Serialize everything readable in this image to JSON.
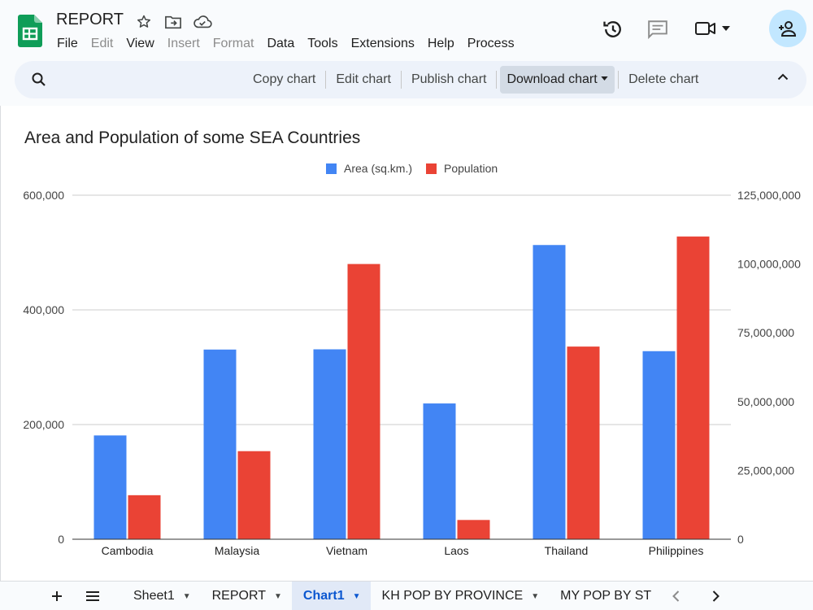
{
  "header": {
    "title": "REPORT",
    "menus": [
      {
        "label": "File",
        "disabled": false
      },
      {
        "label": "Edit",
        "disabled": true
      },
      {
        "label": "View",
        "disabled": false
      },
      {
        "label": "Insert",
        "disabled": true
      },
      {
        "label": "Format",
        "disabled": true
      },
      {
        "label": "Data",
        "disabled": false
      },
      {
        "label": "Tools",
        "disabled": false
      },
      {
        "label": "Extensions",
        "disabled": false
      },
      {
        "label": "Help",
        "disabled": false
      },
      {
        "label": "Process",
        "disabled": false
      }
    ]
  },
  "toolbar": {
    "copy": "Copy chart",
    "edit": "Edit chart",
    "publish": "Publish chart",
    "download": "Download chart",
    "delete": "Delete chart"
  },
  "chart_data": {
    "type": "bar",
    "title": "Area and Population of some SEA Countries",
    "categories": [
      "Cambodia",
      "Malaysia",
      "Vietnam",
      "Laos",
      "Thailand",
      "Philippines"
    ],
    "series": [
      {
        "name": "Area (sq.km.)",
        "axis": "left",
        "color": "#4285f4",
        "values": [
          181035,
          330803,
          331212,
          236800,
          513120,
          328000
        ]
      },
      {
        "name": "Population",
        "axis": "right",
        "color": "#ea4335",
        "values": [
          16000000,
          32000000,
          100000000,
          7000000,
          70000000,
          110000000
        ]
      }
    ],
    "left_axis": {
      "range": [
        0,
        600000
      ],
      "ticks": [
        "0",
        "200,000",
        "400,000",
        "600,000"
      ]
    },
    "right_axis": {
      "range": [
        0,
        125000000
      ],
      "ticks": [
        "0",
        "25,000,000",
        "50,000,000",
        "75,000,000",
        "100,000,000",
        "125,000,000"
      ]
    },
    "legend": "top",
    "grid": true
  },
  "sheets": {
    "tabs": [
      {
        "label": "Sheet1",
        "active": false
      },
      {
        "label": "REPORT",
        "active": false
      },
      {
        "label": "Chart1",
        "active": true
      },
      {
        "label": "KH POP BY PROVINCE",
        "active": false
      },
      {
        "label": "MY POP BY ST",
        "active": false
      }
    ]
  },
  "colors": {
    "accent": "#0b57d0",
    "area": "#4285f4",
    "population": "#ea4335"
  }
}
